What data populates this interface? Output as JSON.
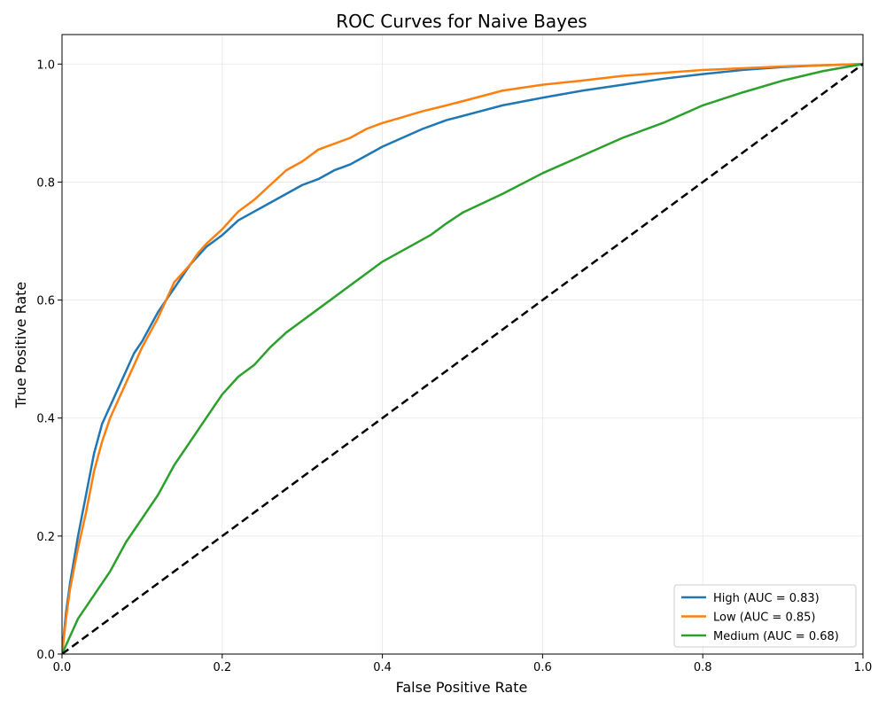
{
  "chart_data": {
    "type": "line",
    "title": "ROC Curves for Naive Bayes",
    "xlabel": "False Positive Rate",
    "ylabel": "True Positive Rate",
    "xlim": [
      0,
      1
    ],
    "ylim": [
      0,
      1.05
    ],
    "xticks": [
      {
        "value": 0.0,
        "label": "0.0"
      },
      {
        "value": 0.2,
        "label": "0.2"
      },
      {
        "value": 0.4,
        "label": "0.4"
      },
      {
        "value": 0.6,
        "label": "0.6"
      },
      {
        "value": 0.8,
        "label": "0.8"
      },
      {
        "value": 1.0,
        "label": "1.0"
      }
    ],
    "yticks": [
      {
        "value": 0.0,
        "label": "0.0"
      },
      {
        "value": 0.2,
        "label": "0.2"
      },
      {
        "value": 0.4,
        "label": "0.4"
      },
      {
        "value": 0.6,
        "label": "0.6"
      },
      {
        "value": 0.8,
        "label": "0.8"
      },
      {
        "value": 1.0,
        "label": "1.0"
      }
    ],
    "grid": true,
    "legend_position": "lower-right",
    "series": [
      {
        "name": "High (AUC = 0.83)",
        "color": "#1f77b4",
        "points": [
          [
            0,
            0
          ],
          [
            0.005,
            0.07
          ],
          [
            0.01,
            0.12
          ],
          [
            0.02,
            0.2
          ],
          [
            0.03,
            0.27
          ],
          [
            0.04,
            0.34
          ],
          [
            0.05,
            0.39
          ],
          [
            0.06,
            0.42
          ],
          [
            0.07,
            0.45
          ],
          [
            0.08,
            0.48
          ],
          [
            0.09,
            0.51
          ],
          [
            0.1,
            0.53
          ],
          [
            0.12,
            0.58
          ],
          [
            0.14,
            0.62
          ],
          [
            0.16,
            0.66
          ],
          [
            0.18,
            0.69
          ],
          [
            0.2,
            0.71
          ],
          [
            0.22,
            0.735
          ],
          [
            0.24,
            0.75
          ],
          [
            0.26,
            0.765
          ],
          [
            0.28,
            0.78
          ],
          [
            0.3,
            0.795
          ],
          [
            0.32,
            0.805
          ],
          [
            0.34,
            0.82
          ],
          [
            0.36,
            0.83
          ],
          [
            0.38,
            0.845
          ],
          [
            0.4,
            0.86
          ],
          [
            0.42,
            0.872
          ],
          [
            0.45,
            0.89
          ],
          [
            0.48,
            0.905
          ],
          [
            0.5,
            0.912
          ],
          [
            0.55,
            0.93
          ],
          [
            0.6,
            0.943
          ],
          [
            0.65,
            0.955
          ],
          [
            0.7,
            0.965
          ],
          [
            0.75,
            0.975
          ],
          [
            0.8,
            0.983
          ],
          [
            0.85,
            0.99
          ],
          [
            0.9,
            0.995
          ],
          [
            0.95,
            0.998
          ],
          [
            1.0,
            1.0
          ]
        ]
      },
      {
        "name": "Low (AUC = 0.85)",
        "color": "#ff7f0e",
        "points": [
          [
            0,
            0
          ],
          [
            0.005,
            0.06
          ],
          [
            0.01,
            0.11
          ],
          [
            0.02,
            0.18
          ],
          [
            0.03,
            0.24
          ],
          [
            0.04,
            0.31
          ],
          [
            0.05,
            0.36
          ],
          [
            0.06,
            0.4
          ],
          [
            0.07,
            0.43
          ],
          [
            0.08,
            0.46
          ],
          [
            0.09,
            0.49
          ],
          [
            0.1,
            0.52
          ],
          [
            0.12,
            0.57
          ],
          [
            0.14,
            0.63
          ],
          [
            0.16,
            0.66
          ],
          [
            0.17,
            0.68
          ],
          [
            0.18,
            0.695
          ],
          [
            0.2,
            0.72
          ],
          [
            0.22,
            0.75
          ],
          [
            0.24,
            0.77
          ],
          [
            0.26,
            0.795
          ],
          [
            0.28,
            0.82
          ],
          [
            0.3,
            0.835
          ],
          [
            0.32,
            0.855
          ],
          [
            0.34,
            0.865
          ],
          [
            0.36,
            0.875
          ],
          [
            0.38,
            0.89
          ],
          [
            0.4,
            0.9
          ],
          [
            0.42,
            0.908
          ],
          [
            0.45,
            0.92
          ],
          [
            0.48,
            0.93
          ],
          [
            0.5,
            0.937
          ],
          [
            0.55,
            0.955
          ],
          [
            0.6,
            0.965
          ],
          [
            0.65,
            0.972
          ],
          [
            0.7,
            0.98
          ],
          [
            0.75,
            0.985
          ],
          [
            0.8,
            0.99
          ],
          [
            0.85,
            0.993
          ],
          [
            0.9,
            0.996
          ],
          [
            0.95,
            0.998
          ],
          [
            1.0,
            1.0
          ]
        ]
      },
      {
        "name": "Medium (AUC = 0.68)",
        "color": "#2ca02c",
        "points": [
          [
            0,
            0
          ],
          [
            0.01,
            0.03
          ],
          [
            0.02,
            0.06
          ],
          [
            0.04,
            0.1
          ],
          [
            0.06,
            0.14
          ],
          [
            0.08,
            0.19
          ],
          [
            0.1,
            0.23
          ],
          [
            0.12,
            0.27
          ],
          [
            0.14,
            0.32
          ],
          [
            0.16,
            0.36
          ],
          [
            0.18,
            0.4
          ],
          [
            0.2,
            0.44
          ],
          [
            0.22,
            0.47
          ],
          [
            0.24,
            0.49
          ],
          [
            0.26,
            0.52
          ],
          [
            0.28,
            0.545
          ],
          [
            0.3,
            0.565
          ],
          [
            0.32,
            0.585
          ],
          [
            0.34,
            0.605
          ],
          [
            0.36,
            0.625
          ],
          [
            0.38,
            0.645
          ],
          [
            0.4,
            0.665
          ],
          [
            0.42,
            0.68
          ],
          [
            0.44,
            0.695
          ],
          [
            0.46,
            0.71
          ],
          [
            0.48,
            0.73
          ],
          [
            0.5,
            0.748
          ],
          [
            0.55,
            0.78
          ],
          [
            0.6,
            0.815
          ],
          [
            0.65,
            0.845
          ],
          [
            0.7,
            0.875
          ],
          [
            0.75,
            0.9
          ],
          [
            0.8,
            0.93
          ],
          [
            0.85,
            0.952
          ],
          [
            0.9,
            0.972
          ],
          [
            0.95,
            0.988
          ],
          [
            1.0,
            1.0
          ]
        ]
      }
    ],
    "reference_line": {
      "points": [
        [
          0,
          0
        ],
        [
          1,
          1
        ]
      ],
      "color": "#000000",
      "dashed": true
    }
  }
}
